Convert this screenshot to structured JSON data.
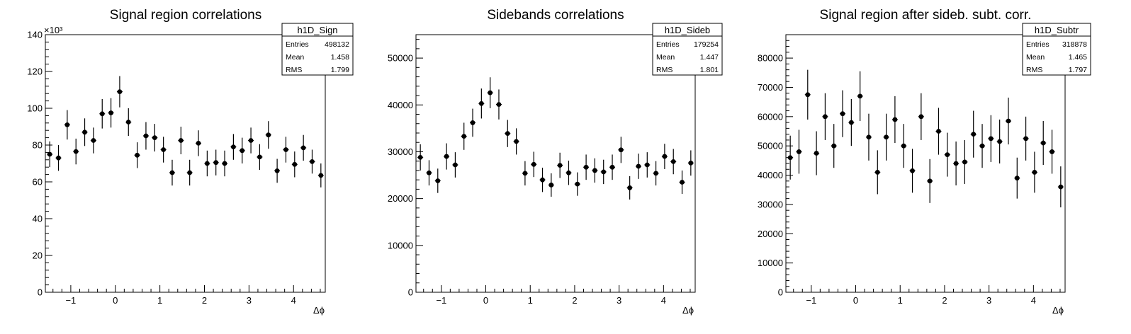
{
  "chart_data": [
    {
      "type": "scatter",
      "title": "Signal region correlations",
      "xlabel": "Δϕ",
      "ylabel": "",
      "xlim": [
        -1.571,
        4.712
      ],
      "ylim": [
        0,
        140000
      ],
      "y_multiplier": "×10³",
      "xticks": [
        -1,
        0,
        1,
        2,
        3,
        4
      ],
      "yticks": [
        0,
        20000,
        40000,
        60000,
        80000,
        100000,
        120000,
        140000
      ],
      "ytick_labels": [
        "0",
        "20",
        "40",
        "60",
        "80",
        "100",
        "120",
        "140"
      ],
      "stats": {
        "name": "h1D_Sign",
        "entries": "498132",
        "mean": "1.458",
        "rms": "1.799"
      },
      "series": [
        {
          "values": [
            75000,
            73000,
            91000,
            76500,
            87000,
            82500,
            97000,
            97500,
            109000,
            92500,
            74500,
            85000,
            84000,
            77500,
            65000,
            82500,
            65000,
            81000,
            70000,
            70500,
            70000,
            79000,
            77000,
            82500,
            73500,
            85500,
            66000,
            77500,
            69500,
            78500,
            71000,
            63500
          ],
          "errors": [
            7000,
            7000,
            8000,
            7000,
            7500,
            7000,
            8000,
            8000,
            8500,
            7500,
            7000,
            7500,
            7500,
            7000,
            7000,
            7500,
            7000,
            7000,
            7000,
            7000,
            7000,
            7000,
            7000,
            7000,
            7000,
            7500,
            6500,
            7000,
            7000,
            7000,
            6500,
            6500
          ]
        }
      ]
    },
    {
      "type": "scatter",
      "title": "Sidebands correlations",
      "xlabel": "Δϕ",
      "ylabel": "",
      "xlim": [
        -1.571,
        4.712
      ],
      "ylim": [
        0,
        55000
      ],
      "xticks": [
        -1,
        0,
        1,
        2,
        3,
        4
      ],
      "yticks": [
        0,
        10000,
        20000,
        30000,
        40000,
        50000
      ],
      "ytick_labels": [
        "0",
        "10000",
        "20000",
        "30000",
        "40000",
        "50000"
      ],
      "stats": {
        "name": "h1D_Sideb",
        "entries": "179254",
        "mean": "1.447",
        "rms": "1.801"
      },
      "series": [
        {
          "values": [
            28800,
            25500,
            23800,
            29000,
            27200,
            33300,
            36200,
            40300,
            42600,
            40100,
            33900,
            32200,
            25400,
            27300,
            24000,
            22900,
            27100,
            25500,
            23100,
            26700,
            26000,
            25700,
            26700,
            30400,
            22300,
            26900,
            27200,
            25400,
            29000,
            27900,
            23500,
            27600
          ],
          "errors": [
            2800,
            2700,
            2600,
            2800,
            2700,
            2900,
            3000,
            3200,
            3300,
            3200,
            2900,
            2800,
            2600,
            2700,
            2600,
            2500,
            2700,
            2600,
            2500,
            2700,
            2600,
            2600,
            2700,
            2800,
            2500,
            2700,
            2700,
            2600,
            2700,
            2700,
            2500,
            2700
          ]
        }
      ]
    },
    {
      "type": "scatter",
      "title": "Signal region after sideb. subt. corr.",
      "xlabel": "Δϕ",
      "ylabel": "",
      "xlim": [
        -1.571,
        4.712
      ],
      "ylim": [
        0,
        88000
      ],
      "xticks": [
        -1,
        0,
        1,
        2,
        3,
        4
      ],
      "yticks": [
        0,
        10000,
        20000,
        30000,
        40000,
        50000,
        60000,
        70000,
        80000
      ],
      "ytick_labels": [
        "0",
        "10000",
        "20000",
        "30000",
        "40000",
        "50000",
        "60000",
        "70000",
        "80000"
      ],
      "stats": {
        "name": "h1D_Subtr",
        "entries": "318878",
        "mean": "1.465",
        "rms": "1.797"
      },
      "series": [
        {
          "values": [
            46000,
            48000,
            67500,
            47500,
            60000,
            50000,
            61000,
            58000,
            67000,
            53000,
            41000,
            53000,
            59000,
            50000,
            41500,
            60000,
            38000,
            55000,
            47000,
            44000,
            44500,
            54000,
            50000,
            52500,
            51500,
            58500,
            39000,
            52500,
            41000,
            51000,
            48000,
            36000
          ],
          "errors": [
            7500,
            7500,
            8500,
            7500,
            8000,
            7500,
            8000,
            8000,
            8500,
            8000,
            7500,
            8000,
            8000,
            7500,
            7500,
            8000,
            7500,
            8000,
            7500,
            7500,
            7500,
            8000,
            7500,
            8000,
            7500,
            8000,
            7000,
            7500,
            7000,
            7500,
            7500,
            7000
          ]
        }
      ]
    }
  ]
}
